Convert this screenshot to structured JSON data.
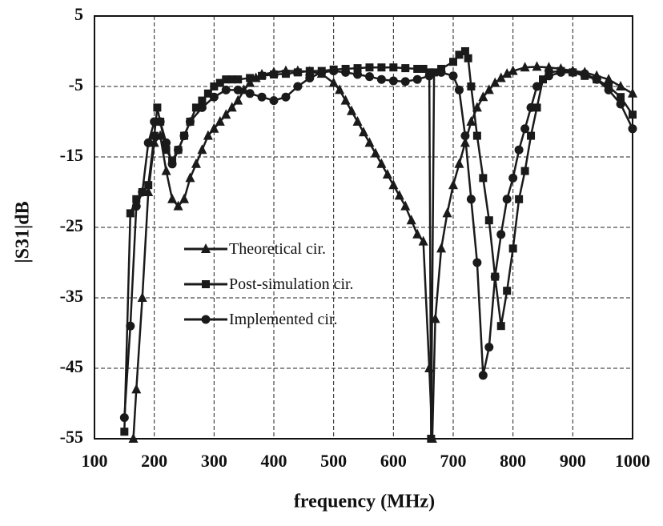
{
  "chart_data": {
    "type": "line",
    "x_label": "frequency (MHz)",
    "y_label": "|S31|dB",
    "xlim": [
      100,
      1000
    ],
    "xticks": [
      100,
      200,
      300,
      400,
      500,
      600,
      700,
      800,
      900,
      1000
    ],
    "ylim": [
      -55,
      5
    ],
    "yticks": [
      -55,
      -45,
      -35,
      -25,
      -15,
      -5,
      5
    ],
    "grid": true,
    "legend": "center-left",
    "series": [
      {
        "name": "Theoretical cir.",
        "color": "#1a1a1a",
        "marker": "triangle",
        "x": [
          165,
          170,
          180,
          190,
          200,
          210,
          220,
          230,
          240,
          250,
          260,
          270,
          280,
          290,
          300,
          310,
          320,
          330,
          340,
          350,
          360,
          370,
          380,
          400,
          420,
          440,
          460,
          480,
          500,
          510,
          520,
          530,
          540,
          550,
          560,
          570,
          580,
          590,
          600,
          610,
          620,
          630,
          640,
          650,
          660,
          665,
          670,
          680,
          690,
          700,
          710,
          720,
          730,
          740,
          750,
          760,
          770,
          780,
          790,
          800,
          820,
          840,
          860,
          880,
          900,
          920,
          940,
          960,
          980,
          1000
        ],
        "values": [
          -55,
          -48,
          -35,
          -20,
          -13,
          -12,
          -17,
          -21,
          -22,
          -21,
          -18,
          -16,
          -14,
          -12,
          -11,
          -10,
          -9,
          -8,
          -7,
          -5.5,
          -4.5,
          -3.8,
          -3.3,
          -3,
          -2.8,
          -2.8,
          -2.9,
          -3.2,
          -4.5,
          -5.5,
          -7,
          -8.5,
          -10,
          -11.5,
          -13,
          -14.5,
          -16,
          -17.5,
          -19,
          -20.5,
          -22,
          -24,
          -26,
          -27,
          -45,
          -55,
          -38,
          -28,
          -23,
          -19,
          -16,
          -13,
          -10,
          -8,
          -6.5,
          -5.5,
          -4.5,
          -3.8,
          -3.2,
          -2.8,
          -2.3,
          -2.2,
          -2.3,
          -2.5,
          -2.8,
          -3,
          -3.5,
          -4,
          -5,
          -6
        ]
      },
      {
        "name": "Post-simulation cir.",
        "color": "#1a1a1a",
        "marker": "square",
        "x": [
          150,
          160,
          170,
          180,
          190,
          200,
          205,
          210,
          220,
          230,
          240,
          250,
          260,
          270,
          280,
          290,
          300,
          310,
          320,
          330,
          340,
          360,
          380,
          400,
          420,
          440,
          460,
          480,
          500,
          520,
          540,
          560,
          580,
          600,
          620,
          640,
          650,
          660,
          663,
          668,
          680,
          700,
          710,
          720,
          725,
          730,
          740,
          750,
          760,
          770,
          780,
          790,
          800,
          810,
          820,
          830,
          840,
          850,
          860,
          880,
          900,
          920,
          940,
          960,
          980,
          1000
        ],
        "values": [
          -54,
          -23,
          -21,
          -20,
          -19,
          -12,
          -8,
          -10,
          -14,
          -15.5,
          -14,
          -12,
          -10,
          -8,
          -7,
          -6,
          -5,
          -4.5,
          -4,
          -4,
          -4,
          -3.8,
          -3.5,
          -3.3,
          -3.2,
          -3,
          -2.8,
          -2.8,
          -2.6,
          -2.5,
          -2.4,
          -2.3,
          -2.3,
          -2.3,
          -2.4,
          -2.5,
          -2.5,
          -3,
          -55,
          -3,
          -2.5,
          -1.5,
          -0.5,
          0,
          -1,
          -5,
          -12,
          -18,
          -24,
          -32,
          -39,
          -34,
          -28,
          -21,
          -17,
          -12,
          -8,
          -4,
          -3,
          -2.8,
          -3,
          -3.5,
          -4,
          -5,
          -6.5,
          -9
        ]
      },
      {
        "name": "Implemented cir.",
        "color": "#1a1a1a",
        "marker": "circle",
        "x": [
          150,
          160,
          170,
          180,
          190,
          200,
          210,
          220,
          230,
          240,
          250,
          260,
          280,
          300,
          320,
          340,
          360,
          380,
          400,
          420,
          440,
          460,
          480,
          500,
          520,
          540,
          560,
          580,
          600,
          620,
          640,
          660,
          680,
          700,
          710,
          720,
          730,
          740,
          750,
          760,
          770,
          780,
          790,
          800,
          810,
          820,
          830,
          840,
          860,
          880,
          900,
          920,
          940,
          960,
          980,
          1000
        ],
        "values": [
          -52,
          -39,
          -22,
          -20,
          -13,
          -10,
          -10,
          -13,
          -16,
          -14,
          -12,
          -10,
          -8,
          -6.5,
          -5.5,
          -5.5,
          -6,
          -6.5,
          -7,
          -6.5,
          -5,
          -3.8,
          -3,
          -2.8,
          -3,
          -3.3,
          -3.6,
          -4,
          -4.2,
          -4.3,
          -4,
          -3.5,
          -3,
          -3.5,
          -5.5,
          -12,
          -21,
          -30,
          -46,
          -42,
          -32,
          -26,
          -21,
          -18,
          -14,
          -11,
          -8,
          -5,
          -3.5,
          -3,
          -3,
          -3.2,
          -4,
          -5.5,
          -7.5,
          -11
        ]
      }
    ]
  }
}
